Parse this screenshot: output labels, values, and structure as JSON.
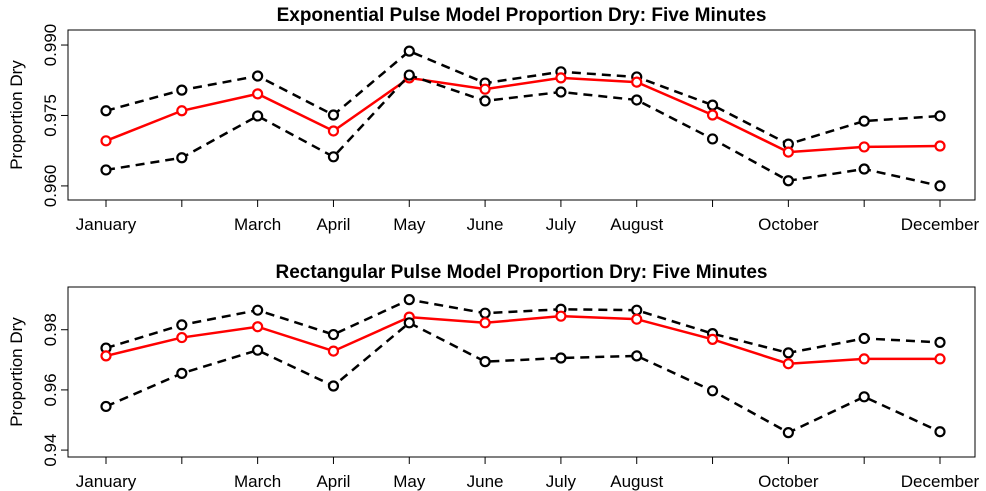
{
  "chart_data": [
    {
      "type": "line",
      "title": "Exponential Pulse Model Proportion Dry: Five Minutes",
      "y_label": "Proportion Dry",
      "categories": [
        "January",
        null,
        "March",
        "April",
        "May",
        "June",
        "July",
        "August",
        null,
        "October",
        null,
        "December"
      ],
      "series": [
        {
          "color": "#000000",
          "dashed": true,
          "values": [
            0.976,
            0.9804,
            0.9834,
            0.9751,
            0.9887,
            0.9819,
            0.9843,
            0.9832,
            0.9772,
            0.9689,
            0.9738,
            0.9749
          ]
        },
        {
          "color": "#ff0000",
          "dashed": false,
          "values": [
            0.9696,
            0.976,
            0.9796,
            0.9717,
            0.983,
            0.9806,
            0.983,
            0.9821,
            0.9751,
            0.9672,
            0.9683,
            0.9685
          ]
        },
        {
          "color": "#000000",
          "dashed": true,
          "values": [
            0.9634,
            0.966,
            0.9749,
            0.9662,
            0.9836,
            0.9781,
            0.98,
            0.9783,
            0.97,
            0.9611,
            0.9636,
            0.96
          ]
        }
      ],
      "ylim": [
        0.957,
        0.9932
      ],
      "yticks": [
        {
          "value": 0.96,
          "label": "0.960"
        },
        0.975,
        {
          "value": 0.99,
          "label": "0.990"
        }
      ]
    },
    {
      "type": "line",
      "title": "Rectangular Pulse Model Proportion Dry: Five Minutes",
      "y_label": "Proportion Dry",
      "categories": [
        "January",
        null,
        "March",
        "April",
        "May",
        "June",
        "July",
        "August",
        null,
        "October",
        null,
        "December"
      ],
      "series": [
        {
          "color": "#000000",
          "dashed": true,
          "values": [
            0.9739,
            0.9816,
            0.9865,
            0.9784,
            0.99,
            0.9855,
            0.9868,
            0.9865,
            0.9787,
            0.9723,
            0.9771,
            0.9758
          ]
        },
        {
          "color": "#ff0000",
          "dashed": false,
          "values": [
            0.9713,
            0.9774,
            0.981,
            0.9729,
            0.9842,
            0.9823,
            0.9845,
            0.9835,
            0.9768,
            0.9687,
            0.9703,
            0.9703
          ]
        },
        {
          "color": "#000000",
          "dashed": true,
          "values": [
            0.9545,
            0.9655,
            0.9732,
            0.9613,
            0.9823,
            0.9694,
            0.9706,
            0.9713,
            0.9597,
            0.9458,
            0.9577,
            0.9461
          ]
        }
      ],
      "ylim": [
        0.9377,
        0.9942
      ],
      "yticks": [
        0.94,
        0.96,
        0.98
      ]
    }
  ]
}
